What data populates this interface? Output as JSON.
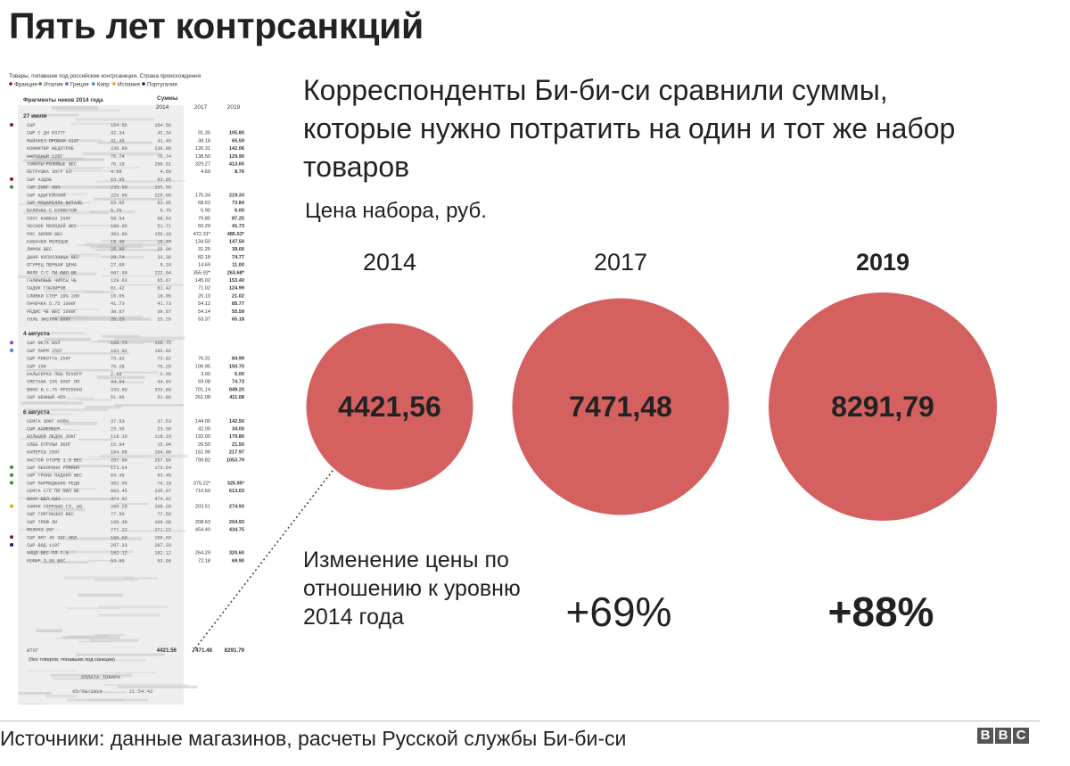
{
  "title": "Пять лет контрсанкций",
  "subtitle": "Корреспонденты Би-би-си сравнили суммы, которые нужно потратить на один и тот же набор товаров",
  "price_label": "Цена набора, руб.",
  "change_label": "Изменение цены по отношению к уровню 2014 года",
  "source": "Источники: данные магазинов, расчеты Русской службы Би-би-си",
  "logo": [
    "B",
    "B",
    "C"
  ],
  "bubble_color": "#d46160",
  "chart_data": {
    "type": "bubble",
    "categories": [
      "2014",
      "2017",
      "2019"
    ],
    "values": [
      4421.56,
      7471.48,
      8291.79
    ],
    "value_labels": [
      "4421,56",
      "7471,48",
      "8291,79"
    ],
    "change_labels": [
      "",
      "+69%",
      "+88%"
    ],
    "highlight": "2019"
  },
  "receipt": {
    "header": "Товары, попавшие под российские контрсанкции. Страна происхождения",
    "legend": [
      {
        "label": "Франция",
        "color": "#8b1a1a"
      },
      {
        "label": "Италия",
        "color": "#3d8b2f"
      },
      {
        "label": "Греция",
        "color": "#8e44c9"
      },
      {
        "label": "Кипр",
        "color": "#2f8fc9"
      },
      {
        "label": "Испания",
        "color": "#e6a21a"
      },
      {
        "label": "Португалия",
        "color": "#1a1a6e"
      }
    ],
    "col_title": "Фрагменты чеков 2014 года",
    "col_sums": "Суммы",
    "years": [
      "2014",
      "2017",
      "2019"
    ],
    "sections": [
      {
        "date": "27 июля",
        "rows": [
          {
            "name": "СЫР",
            "a": "154.56",
            "b": "154.56",
            "c": "",
            "d": "",
            "dot": "#8b1a1a"
          },
          {
            "name": "СЫР С ДН 0377Г",
            "a": "42.34",
            "b": "42.34",
            "c": "91.35",
            "d": "105.80",
            "dot": ""
          },
          {
            "name": "МАЙОНЕЗ ПРОВАН 410Г",
            "a": "41.45",
            "b": "41.45",
            "c": "38.18",
            "d": "65.59",
            "dot": ""
          },
          {
            "name": "КОНФИТЮР НЕДОТРОЕ",
            "a": "236.99",
            "b": "236.99",
            "c": "126.31",
            "d": "142.06",
            "dot": ""
          },
          {
            "name": "НАРОДНЫЙ 125Г",
            "a": "75.74",
            "b": "75.74",
            "c": "138.50",
            "d": "129.90",
            "dot": ""
          },
          {
            "name": "ТОМАТЫ РОЗОВЫЕ ВЕС",
            "a": "76.10",
            "b": "250.51",
            "c": "329.27",
            "d": "413.65",
            "dot": ""
          },
          {
            "name": "ПЕТРУШКА ЗОГР КЛ",
            "a": "4.59",
            "b": "4.59",
            "c": "4.69",
            "d": "8.76",
            "dot": ""
          },
          {
            "name": "СЫР АЗДОБ",
            "a": "63.95",
            "b": "63.95",
            "c": "",
            "d": "",
            "dot": "#8b1a1a"
          },
          {
            "name": "СЫР 200Г 45%",
            "a": "235.50",
            "b": "235.50",
            "c": "",
            "d": "",
            "dot": "#3d8b2f"
          },
          {
            "name": "СЫР АДЫГЕЙСКИЙ",
            "a": "225.60",
            "b": "225.60",
            "c": "175.34",
            "d": "219.33",
            "dot": ""
          },
          {
            "name": "СЫР МОЦАРЕЛЛА ВИТАЛЕ",
            "a": "83.95",
            "b": "83.95",
            "c": "68.52",
            "d": "73.84",
            "dot": ""
          },
          {
            "name": "БУЛОЧКА С КУНЖУТОМ",
            "a": "5.75",
            "b": "5.75",
            "c": "5.90",
            "d": "6.00",
            "dot": ""
          },
          {
            "name": "СОУС КАВКАЗ 250Г",
            "a": "58.54",
            "b": "58.54",
            "c": "79.85",
            "d": "87.25",
            "dot": ""
          },
          {
            "name": "ЧЕСНОК МОЛОДОЙ ВЕС",
            "a": "186.95",
            "b": "51.71",
            "c": "60.29",
            "d": "41.73",
            "dot": ""
          },
          {
            "name": "РИС ЗИЛИЯ ВЕС",
            "a": "303.99",
            "b": "156.18",
            "c": "472.31*",
            "d": "485.53*",
            "dot": ""
          },
          {
            "name": "КАБАЧКИ МОЛОДЫЕ",
            "a": "19.40",
            "b": "19.40",
            "c": "134.50",
            "d": "147.50",
            "dot": ""
          },
          {
            "name": "ЛИМОН ВЕС",
            "a": "25.99",
            "b": "25.99",
            "c": "31.25",
            "d": "39.00",
            "dot": ""
          },
          {
            "name": "ДЫНЯ КОЛХОЗНИЦА ВЕС",
            "a": "29.74",
            "b": "33.38",
            "c": "82.18",
            "d": "74.77",
            "dot": ""
          },
          {
            "name": "ОГУРЕЦ ПЕРВАЯ ЦЕНА",
            "a": "27.00",
            "b": "5.18",
            "c": "14.69",
            "d": "11.00",
            "dot": ""
          },
          {
            "name": "ФИЛЕ С/С ПИ ФИЛ ВЕ",
            "a": "667.99",
            "b": "222.04",
            "c": "355.92*",
            "d": "263.68*",
            "dot": ""
          },
          {
            "name": "ГАЛИНОВЫЕ ЧИПСЫ ЧЕ",
            "a": "129.63",
            "b": "65.67",
            "c": "145.02",
            "d": "153.40",
            "dot": ""
          },
          {
            "name": "СЫДОК ГЛАЗИРОВ",
            "a": "61.42",
            "b": "61.42",
            "c": "71.02",
            "d": "124.99",
            "dot": ""
          },
          {
            "name": "СЛИВКИ СТЕР 10% 200",
            "a": "10.05",
            "b": "10.05",
            "c": "20.10",
            "d": "21.02",
            "dot": ""
          },
          {
            "name": "ПАЧЕЧКА 5.75 1000Г",
            "a": "41.73",
            "b": "41.73",
            "c": "54.12",
            "d": "85.77",
            "dot": ""
          },
          {
            "name": "РЕДИС ЧЕ ВЕС 1000Г",
            "a": "39.67",
            "b": "39.67",
            "c": "54.14",
            "d": "55.59",
            "dot": ""
          },
          {
            "name": "СОЛЬ ЭКСТРА 500Г",
            "a": "25.25",
            "b": "25.25",
            "c": "53.37",
            "d": "65.18",
            "dot": ""
          }
        ]
      },
      {
        "date": "4 августа",
        "rows": [
          {
            "name": "СЫР ФЕТА ВАЛ",
            "a": "126.75",
            "b": "126.75",
            "c": "",
            "d": "",
            "dot": "#8e44c9"
          },
          {
            "name": "СЫР ПАРМ 250Г",
            "a": "163.92",
            "b": "163.92",
            "c": "",
            "d": "",
            "dot": "#2f8fc9"
          },
          {
            "name": "СЫР РИКОТТА 250Г",
            "a": "73.92",
            "b": "73.92",
            "c": "76.31",
            "d": "84.99",
            "dot": ""
          },
          {
            "name": "СЫР 150",
            "a": "75.28",
            "b": "75.28",
            "c": "106.95",
            "d": "150.70",
            "dot": ""
          },
          {
            "name": "КАЛЬСЕРКА ПЕШ ПУХОГР",
            "a": "2.90",
            "b": "2.90",
            "c": "3.90",
            "d": "6.00",
            "dot": ""
          },
          {
            "name": "СМЕТАНА 15% 500Г ОП",
            "a": "44.04",
            "b": "44.04",
            "c": "59.08",
            "d": "74.73",
            "dot": ""
          },
          {
            "name": "ВИНО Б.С.75 ПРОСЕККО",
            "a": "333.89",
            "b": "333.89",
            "c": "701.14",
            "d": "849.20",
            "dot": ""
          },
          {
            "name": "СЫР НЕЖНЫЙ 45%",
            "a": "51.86",
            "b": "51.86",
            "c": "261.08",
            "d": "411.08",
            "dot": ""
          }
        ]
      },
      {
        "date": "6 августа",
        "rows": [
          {
            "name": "СЕМГА ЗОКГ КОПЧ",
            "a": "37.53",
            "b": "37.53",
            "c": "144.00",
            "d": "142.50",
            "dot": ""
          },
          {
            "name": "СЫР КАМЕМБЕР",
            "a": "23.30",
            "b": "23.30",
            "c": "42.00",
            "d": "34.00",
            "dot": ""
          },
          {
            "name": "БОЛЬШОЙ ЛЕДОК ЗОКГ",
            "a": "118.19",
            "b": "118.19",
            "c": "192.00",
            "d": "179.80",
            "dot": ""
          },
          {
            "name": "ХЛЕБ ОТРУБИ ЗОЛГ",
            "a": "15.94",
            "b": "15.94",
            "c": "26.50",
            "d": "21.50",
            "dot": ""
          },
          {
            "name": "КАПЕРСЫ 250Г",
            "a": "104.08",
            "b": "104.08",
            "c": "161.96",
            "d": "217.97",
            "dot": ""
          },
          {
            "name": "НАСТОЙ ОТОРВ 1.0 ВЕС",
            "a": "257.99",
            "b": "257.99",
            "c": "799.82",
            "d": "1053.79",
            "dot": ""
          },
          {
            "name": "СЫР ПЕКОРИНО РОМАНО",
            "a": "173.64",
            "b": "173.64",
            "c": "",
            "d": "",
            "dot": "#3d8b2f"
          },
          {
            "name": "СЫР ГРАНА ПАДАНО ВЕС",
            "a": "63.45",
            "b": "63.45",
            "c": "",
            "d": "",
            "dot": "#3d8b2f"
          },
          {
            "name": "СЫР ПАРМИДЖАНО РЕДЖ",
            "a": "302.05",
            "b": "76.18",
            "c": "375.22*",
            "d": "325.95*",
            "dot": "#3d8b2f"
          },
          {
            "name": "СЕМГА С/С ПИ ФИЛ ВЕ",
            "a": "603.45",
            "b": "235.07",
            "c": "710.69",
            "d": "613.03",
            "dot": ""
          },
          {
            "name": "ВИНО БЕЛ СИХ",
            "a": "474.92",
            "b": "474.92",
            "c": "",
            "d": "",
            "dot": ""
          },
          {
            "name": "ХАМОН СЕРРАНО ГЛ. 90",
            "a": "208.28",
            "b": "208.28",
            "c": "203.51",
            "d": "274.93",
            "dot": "#e6a21a"
          },
          {
            "name": "СЫР ГОРГОНЗОЛ ВЕС",
            "a": "77.50",
            "b": "77.50",
            "c": "",
            "d": "",
            "dot": ""
          },
          {
            "name": "СЫР ТРЮФ ЛИ",
            "a": "109.38",
            "b": "109.38",
            "c": "208.63",
            "d": "204.93",
            "dot": ""
          },
          {
            "name": "МОЛОКО 95Г",
            "a": "271.22",
            "b": "271.22",
            "c": "454.40",
            "d": "434.75",
            "dot": ""
          },
          {
            "name": "СЫР ИНТ 45 ЗОГ НОЛ",
            "a": "166.69",
            "b": "166.69",
            "c": "",
            "d": "",
            "dot": "#8b1a1a"
          },
          {
            "name": "СЫР ВОД 110Г",
            "a": "207.33",
            "b": "207.33",
            "c": "",
            "d": "",
            "dot": "#1a1a6e"
          },
          {
            "name": "ЯЙЦО ВЕС ПЛ 7.5",
            "a": "182.12",
            "b": "182.12",
            "c": "264.29",
            "d": "320.60",
            "dot": ""
          },
          {
            "name": "КЕФИР 3.5% ВЕС",
            "a": "53.90",
            "b": "53.90",
            "c": "72.18",
            "d": "69.90",
            "dot": ""
          }
        ]
      }
    ],
    "total_label": "ИТОГ",
    "total_note": "(без товаров, попавших под санкции)",
    "totals": [
      "4421.56",
      "7471.48",
      "8291.79"
    ],
    "paid_label": "ОПЛАТА ТОВАРА",
    "date_stamp": "05/08/2014",
    "time_stamp": "21:54:42"
  }
}
